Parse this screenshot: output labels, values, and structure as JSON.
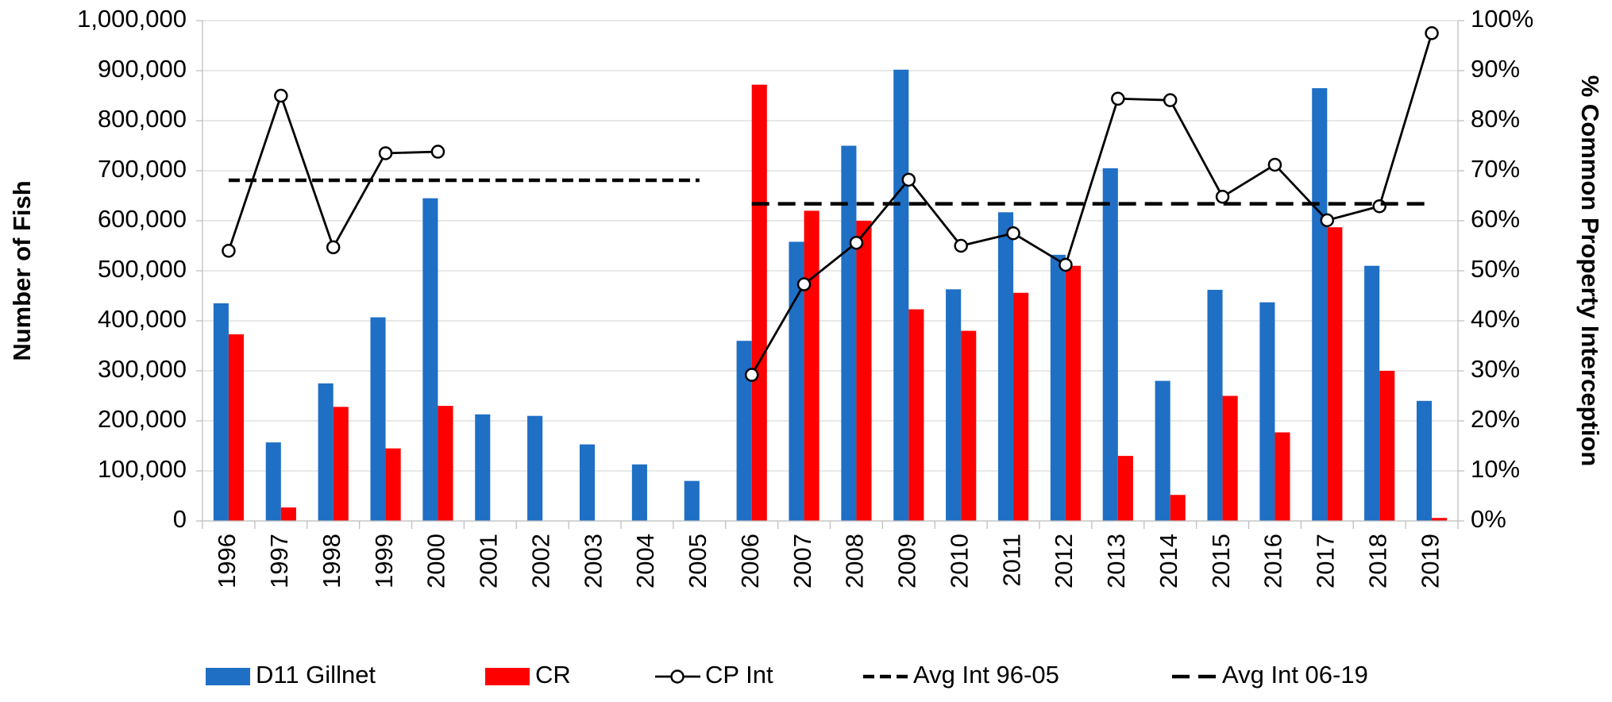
{
  "chart_data": {
    "type": "bar-line",
    "categories": [
      "1996",
      "1997",
      "1998",
      "1999",
      "2000",
      "2001",
      "2002",
      "2003",
      "2004",
      "2005",
      "2006",
      "2007",
      "2008",
      "2009",
      "2010",
      "2011",
      "2012",
      "2013",
      "2014",
      "2015",
      "2016",
      "2017",
      "2018",
      "2019"
    ],
    "y_label": "Number of Fish",
    "y2_label": "% Common Property  Interception",
    "ylim": [
      0,
      1000000
    ],
    "yticks": [
      0,
      {
        "value": 100000,
        "label": "100,000"
      },
      {
        "value": 200000,
        "label": "200,000"
      },
      {
        "value": 300000,
        "label": "300,000"
      },
      {
        "value": 400000,
        "label": "400,000"
      },
      {
        "value": 500000,
        "label": "500,000"
      },
      {
        "value": 600000,
        "label": "600,000"
      },
      {
        "value": 700000,
        "label": "700,000"
      },
      {
        "value": 800000,
        "label": "800,000"
      },
      {
        "value": 900000,
        "label": "900,000"
      },
      {
        "value": 1000000,
        "label": "1,000,000"
      }
    ],
    "y2lim": [
      0,
      100
    ],
    "y2ticks": [
      {
        "value": 0,
        "label": "0%"
      },
      {
        "value": 10,
        "label": "10%"
      },
      {
        "value": 20,
        "label": "20%"
      },
      {
        "value": 30,
        "label": "30%"
      },
      {
        "value": 40,
        "label": "40%"
      },
      {
        "value": 50,
        "label": "50%"
      },
      {
        "value": 60,
        "label": "60%"
      },
      {
        "value": 70,
        "label": "70%"
      },
      {
        "value": 80,
        "label": "80%"
      },
      {
        "value": 90,
        "label": "90%"
      },
      {
        "value": 100,
        "label": "100%"
      }
    ],
    "grid": true,
    "legend": "bottom",
    "series": [
      {
        "name": "D11 Gillnet",
        "kind": "bar",
        "color": "#1f6fc5",
        "values": [
          435000,
          157000,
          275000,
          407000,
          645000,
          213000,
          210000,
          153000,
          113000,
          80000,
          360000,
          558000,
          750000,
          902000,
          463000,
          617000,
          532000,
          705000,
          280000,
          462000,
          437000,
          865000,
          510000,
          240000
        ]
      },
      {
        "name": "CR",
        "kind": "bar",
        "color": "#ff0000",
        "values": [
          373000,
          27000,
          228000,
          145000,
          230000,
          null,
          null,
          null,
          null,
          null,
          872000,
          620000,
          600000,
          423000,
          380000,
          456000,
          510000,
          130000,
          52000,
          250000,
          177000,
          587000,
          300000,
          6000
        ]
      },
      {
        "name": "CP Int",
        "kind": "line",
        "axis": "y2",
        "color": "#000000",
        "marker": "circle",
        "values": [
          54,
          85,
          54.7,
          73.5,
          73.8,
          null,
          null,
          null,
          null,
          null,
          29.2,
          47.3,
          55.6,
          68.2,
          55,
          57.5,
          51.2,
          84.4,
          84.1,
          64.8,
          71.2,
          60.1,
          62.9,
          97.5
        ]
      },
      {
        "name": "Avg Int 96-05",
        "kind": "line",
        "axis": "y2",
        "color": "#000000",
        "dash": "short",
        "values": [
          68.1,
          68.1,
          68.1,
          68.1,
          68.1,
          68.1,
          68.1,
          68.1,
          68.1,
          68.1,
          null,
          null,
          null,
          null,
          null,
          null,
          null,
          null,
          null,
          null,
          null,
          null,
          null,
          null
        ]
      },
      {
        "name": "Avg Int 06-19",
        "kind": "line",
        "axis": "y2",
        "color": "#000000",
        "dash": "long",
        "values": [
          null,
          null,
          null,
          null,
          null,
          null,
          null,
          null,
          null,
          null,
          63.4,
          63.4,
          63.4,
          63.4,
          63.4,
          63.4,
          63.4,
          63.4,
          63.4,
          63.4,
          63.4,
          63.4,
          63.4,
          63.4
        ]
      }
    ]
  }
}
